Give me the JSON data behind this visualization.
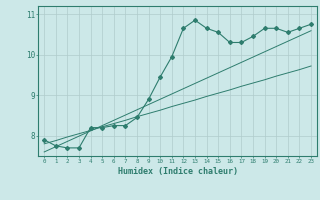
{
  "xlabel": "Humidex (Indice chaleur)",
  "x_values": [
    0,
    1,
    2,
    3,
    4,
    5,
    6,
    7,
    8,
    9,
    10,
    11,
    12,
    13,
    14,
    15,
    16,
    17,
    18,
    19,
    20,
    21,
    22,
    23
  ],
  "y_main": [
    7.9,
    7.75,
    7.7,
    7.7,
    8.2,
    8.2,
    8.25,
    8.25,
    8.45,
    8.9,
    9.45,
    9.95,
    10.65,
    10.85,
    10.65,
    10.55,
    10.3,
    10.3,
    10.45,
    10.65,
    10.65,
    10.55,
    10.65,
    10.75
  ],
  "y_line1": [
    7.8,
    7.88,
    7.97,
    8.05,
    8.13,
    8.22,
    8.3,
    8.38,
    8.47,
    8.55,
    8.63,
    8.72,
    8.8,
    8.88,
    8.97,
    9.05,
    9.13,
    9.22,
    9.3,
    9.38,
    9.47,
    9.55,
    9.63,
    9.72
  ],
  "y_line2": [
    7.6,
    7.73,
    7.86,
    7.99,
    8.12,
    8.25,
    8.38,
    8.51,
    8.64,
    8.77,
    8.9,
    9.03,
    9.16,
    9.29,
    9.42,
    9.55,
    9.68,
    9.81,
    9.94,
    10.07,
    10.2,
    10.33,
    10.46,
    10.59
  ],
  "line_color": "#2e7d6e",
  "bg_color": "#cce8e8",
  "grid_color": "#b0cccc",
  "ylim": [
    7.5,
    11.2
  ],
  "xlim": [
    -0.5,
    23.5
  ],
  "yticks": [
    8,
    9,
    10,
    11
  ],
  "xticks": [
    0,
    1,
    2,
    3,
    4,
    5,
    6,
    7,
    8,
    9,
    10,
    11,
    12,
    13,
    14,
    15,
    16,
    17,
    18,
    19,
    20,
    21,
    22,
    23
  ]
}
